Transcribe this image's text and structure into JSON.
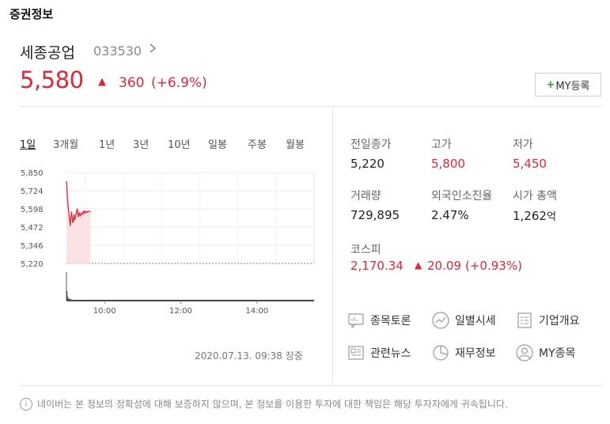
{
  "section_title": "증권정보",
  "stock": {
    "name": "세종공업",
    "code": "033530",
    "price": "5,580",
    "change_arrow": "▲",
    "change": "360",
    "change_pct": "(+6.9%)"
  },
  "my_button": {
    "plus": "+",
    "label": "MY등록"
  },
  "periods": [
    "1일",
    "3개월",
    "1년",
    "3년",
    "10년",
    "일봉",
    "주봉",
    "월봉"
  ],
  "chart_data": {
    "type": "line",
    "title": "",
    "y_ticks": [
      "5,850",
      "5,724",
      "5,598",
      "5,472",
      "5,346",
      "5,220"
    ],
    "ylim": [
      5220,
      5850
    ],
    "x_ticks": [
      "10:00",
      "12:00",
      "14:00"
    ],
    "prev_close": 5220,
    "series": [
      {
        "x": [
          "09:00",
          "09:01",
          "09:02",
          "09:03",
          "09:04",
          "09:05",
          "09:06",
          "09:07",
          "09:08",
          "09:09",
          "09:10",
          "09:11",
          "09:12",
          "09:13",
          "09:14",
          "09:15",
          "09:16",
          "09:17",
          "09:18",
          "09:19",
          "09:20",
          "09:21",
          "09:22",
          "09:23",
          "09:24",
          "09:25",
          "09:26",
          "09:27",
          "09:28",
          "09:29",
          "09:30",
          "09:31",
          "09:32",
          "09:33",
          "09:34",
          "09:35",
          "09:36",
          "09:37",
          "09:38"
        ],
        "values": [
          5790,
          5720,
          5650,
          5600,
          5560,
          5520,
          5480,
          5540,
          5580,
          5540,
          5500,
          5520,
          5560,
          5520,
          5540,
          5560,
          5580,
          5600,
          5560,
          5540,
          5570,
          5560,
          5550,
          5560,
          5570,
          5560,
          5570,
          5580,
          5570,
          5580,
          5570,
          5575,
          5580,
          5575,
          5580,
          5578,
          5580,
          5580,
          5580
        ]
      }
    ],
    "volume": [
      120,
      40,
      18,
      10,
      8,
      6,
      9,
      5,
      4,
      3,
      3,
      2,
      2,
      2,
      2,
      1,
      1,
      1,
      1,
      1,
      1,
      1,
      1,
      1,
      1,
      1,
      1,
      1,
      1,
      1,
      1,
      1,
      1,
      1,
      1,
      1,
      1,
      1,
      1
    ]
  },
  "timestamp": "2020.07.13. 09:38 장중",
  "stats": {
    "prev_close": {
      "label": "전일종가",
      "value": "5,220"
    },
    "high": {
      "label": "고가",
      "value": "5,800"
    },
    "low": {
      "label": "저가",
      "value": "5,450"
    },
    "volume": {
      "label": "거래량",
      "value": "729,895"
    },
    "foreign": {
      "label": "외국인소진율",
      "value": "2.47%"
    },
    "market_cap": {
      "label": "시가 총액",
      "value": "1,262",
      "unit": "억"
    },
    "kospi": {
      "label": "코스피",
      "value": "2,170.34",
      "arrow": "▲",
      "change": "20.09",
      "pct": "(+0.93%)"
    }
  },
  "links": {
    "discussion": "종목토론",
    "daily": "일별시세",
    "company": "기업개요",
    "news": "관련뉴스",
    "finance": "재무정보",
    "my_stocks": "MY종목"
  },
  "notice": {
    "icon": "i",
    "text": "네이버는 본 정보의 정확성에 대해 보증하지 않으며, 본 정보를 이용한 투자에 대한 책임은 해당 투자자에게 귀속됩니다."
  },
  "colors": {
    "up": "#e0263a",
    "accent_green": "#2e9e3e"
  }
}
